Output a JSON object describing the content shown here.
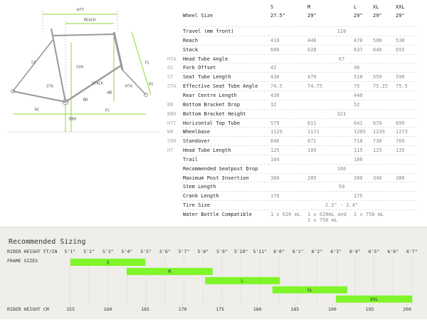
{
  "diagram": {
    "labels": [
      "HTT",
      "REACH",
      "ST",
      "SOH",
      "STACK",
      "STA",
      "HTA",
      "FL",
      "OS",
      "WB",
      "BB",
      "BBH",
      "RC",
      "FC"
    ]
  },
  "table": {
    "columns": [
      "S",
      "M",
      "L",
      "XL",
      "XXL"
    ],
    "rows": [
      {
        "label": "Wheel Size",
        "cells": [
          {
            "text": "27.5\"",
            "span": 1
          },
          {
            "text": "29\"",
            "span": 1
          },
          {
            "text": "29\"",
            "span": 1
          },
          {
            "text": "29\"",
            "span": 1
          },
          {
            "text": "29\"",
            "span": 1
          }
        ]
      },
      {
        "label": "Travel (mm front)",
        "cells": [
          {
            "text": "120",
            "span": 5
          }
        ]
      },
      {
        "label": "Reach",
        "cells": [
          {
            "text": "410",
            "span": 1
          },
          {
            "text": "440",
            "span": 1
          },
          {
            "text": "470",
            "span": 1
          },
          {
            "text": "500",
            "span": 1
          },
          {
            "text": "530",
            "span": 1
          }
        ]
      },
      {
        "label": "Stack",
        "cells": [
          {
            "text": "608",
            "span": 1
          },
          {
            "text": "628",
            "span": 1
          },
          {
            "text": "637",
            "span": 1
          },
          {
            "text": "646",
            "span": 1
          },
          {
            "text": "655",
            "span": 1
          }
        ]
      },
      {
        "abbr": "HTA",
        "label": "Head Tube Angle",
        "cells": [
          {
            "text": "67",
            "span": 5
          }
        ]
      },
      {
        "abbr": "OS",
        "label": "Fork Offset",
        "cells": [
          {
            "text": "42",
            "span": 2
          },
          {
            "text": "46",
            "span": 3
          }
        ]
      },
      {
        "abbr": "ST",
        "label": "Seat Tube Length",
        "cells": [
          {
            "text": "430",
            "span": 1
          },
          {
            "text": "470",
            "span": 1
          },
          {
            "text": "510",
            "span": 1
          },
          {
            "text": "550",
            "span": 1
          },
          {
            "text": "590",
            "span": 1
          }
        ]
      },
      {
        "abbr": "STA",
        "label": "Effective Seat Tube Angle",
        "cells": [
          {
            "text": "74.5",
            "span": 1
          },
          {
            "text": "74.75",
            "span": 1
          },
          {
            "text": "75",
            "span": 1
          },
          {
            "text": "75.25",
            "span": 1
          },
          {
            "text": "75.5",
            "span": 1
          }
        ]
      },
      {
        "label": "Rear Centre Length",
        "cells": [
          {
            "text": "430",
            "span": 2
          },
          {
            "text": "440",
            "span": 3
          }
        ]
      },
      {
        "abbr": "BB",
        "label": "Bottom Bracket Drop",
        "cells": [
          {
            "text": "32",
            "span": 2
          },
          {
            "text": "52",
            "span": 3
          }
        ]
      },
      {
        "abbr": "BBH",
        "label": "Bottom Bracket Height",
        "cells": [
          {
            "text": "321",
            "span": 5
          }
        ]
      },
      {
        "abbr": "HTT",
        "label": "Horizontal Top Tube",
        "cells": [
          {
            "text": "579",
            "span": 1
          },
          {
            "text": "611",
            "span": 1
          },
          {
            "text": "641",
            "span": 1
          },
          {
            "text": "670",
            "span": 1
          },
          {
            "text": "699",
            "span": 1
          }
        ]
      },
      {
        "abbr": "WB",
        "label": "Wheelbase",
        "cells": [
          {
            "text": "1129",
            "span": 1
          },
          {
            "text": "1171",
            "span": 1
          },
          {
            "text": "1205",
            "span": 1
          },
          {
            "text": "1239",
            "span": 1
          },
          {
            "text": "1273",
            "span": 1
          }
        ]
      },
      {
        "abbr": "SOH",
        "label": "Standover",
        "cells": [
          {
            "text": "646",
            "span": 1
          },
          {
            "text": "671",
            "span": 1
          },
          {
            "text": "718",
            "span": 1
          },
          {
            "text": "738",
            "span": 1
          },
          {
            "text": "769",
            "span": 1
          }
        ]
      },
      {
        "abbr": "HT",
        "label": "Head Tube Length",
        "cells": [
          {
            "text": "125",
            "span": 1
          },
          {
            "text": "105",
            "span": 1
          },
          {
            "text": "115",
            "span": 1
          },
          {
            "text": "125",
            "span": 1
          },
          {
            "text": "135",
            "span": 1
          }
        ]
      },
      {
        "label": "Trail",
        "cells": [
          {
            "text": "104",
            "span": 2
          },
          {
            "text": "108",
            "span": 3
          }
        ]
      },
      {
        "label": "Recommended Seatpost Drop",
        "cells": [
          {
            "text": "100",
            "span": 5
          }
        ]
      },
      {
        "label": "Maximum Post Insertion",
        "cells": [
          {
            "text": "300",
            "span": 1
          },
          {
            "text": "285",
            "span": 1
          },
          {
            "text": "300",
            "span": 1
          },
          {
            "text": "340",
            "span": 1
          },
          {
            "text": "380",
            "span": 1
          }
        ]
      },
      {
        "label": "Stem Length",
        "cells": [
          {
            "text": "50",
            "span": 5
          }
        ]
      },
      {
        "label": "Crank Length",
        "cells": [
          {
            "text": "170",
            "span": 2
          },
          {
            "text": "175",
            "span": 3
          }
        ]
      },
      {
        "label": "Tire Size",
        "cells": [
          {
            "text": "2.2\" - 2.4\"",
            "span": 5
          }
        ]
      },
      {
        "label": "Water Bottle Compatible",
        "cells": [
          {
            "text": "1 x 620 mL",
            "span": 1
          },
          {
            "text": "1 x 620mL and 1 x 750 mL",
            "span": 1
          },
          {
            "text": "2 x 750 mL",
            "span": 3
          }
        ]
      }
    ]
  },
  "chart_data": {
    "type": "range_bar",
    "title": "Recommended Sizing",
    "xlabel_top": "RIDER HEIGHT FT/IN",
    "ylabel": "FRAME SIZES",
    "xlabel": "RIDER HEIGHT CM",
    "categories": [
      "S",
      "M",
      "L",
      "XL",
      "XXL"
    ],
    "values": [
      [
        155,
        165
      ],
      [
        162.5,
        174
      ],
      [
        173,
        183
      ],
      [
        182,
        192
      ],
      [
        190.5,
        200.7
      ]
    ],
    "color": "#7ff52a",
    "xlim": [
      155,
      200
    ],
    "xticks": [
      155,
      160,
      165,
      170,
      175,
      180,
      185,
      190,
      195,
      200
    ],
    "xticks_top": [
      {
        "value": 154.94,
        "label": "5'1\""
      },
      {
        "value": 157.48,
        "label": "5'2\""
      },
      {
        "value": 160.02,
        "label": "5'3\""
      },
      {
        "value": 162.56,
        "label": "5'4\""
      },
      {
        "value": 165.1,
        "label": "5'5\""
      },
      {
        "value": 167.64,
        "label": "5'6\""
      },
      {
        "value": 170.18,
        "label": "5'7\""
      },
      {
        "value": 172.72,
        "label": "5'8\""
      },
      {
        "value": 175.26,
        "label": "5'9\""
      },
      {
        "value": 177.8,
        "label": "5'10\""
      },
      {
        "value": 180.34,
        "label": "5'11\""
      },
      {
        "value": 182.88,
        "label": "6'0\""
      },
      {
        "value": 185.42,
        "label": "6'1\""
      },
      {
        "value": 187.96,
        "label": "6'2\""
      },
      {
        "value": 190.5,
        "label": "6'3\""
      },
      {
        "value": 193.04,
        "label": "6'4\""
      },
      {
        "value": 195.58,
        "label": "6'5\""
      },
      {
        "value": 198.12,
        "label": "6'6\""
      },
      {
        "value": 200.66,
        "label": "6'7\""
      }
    ],
    "grid": true
  }
}
